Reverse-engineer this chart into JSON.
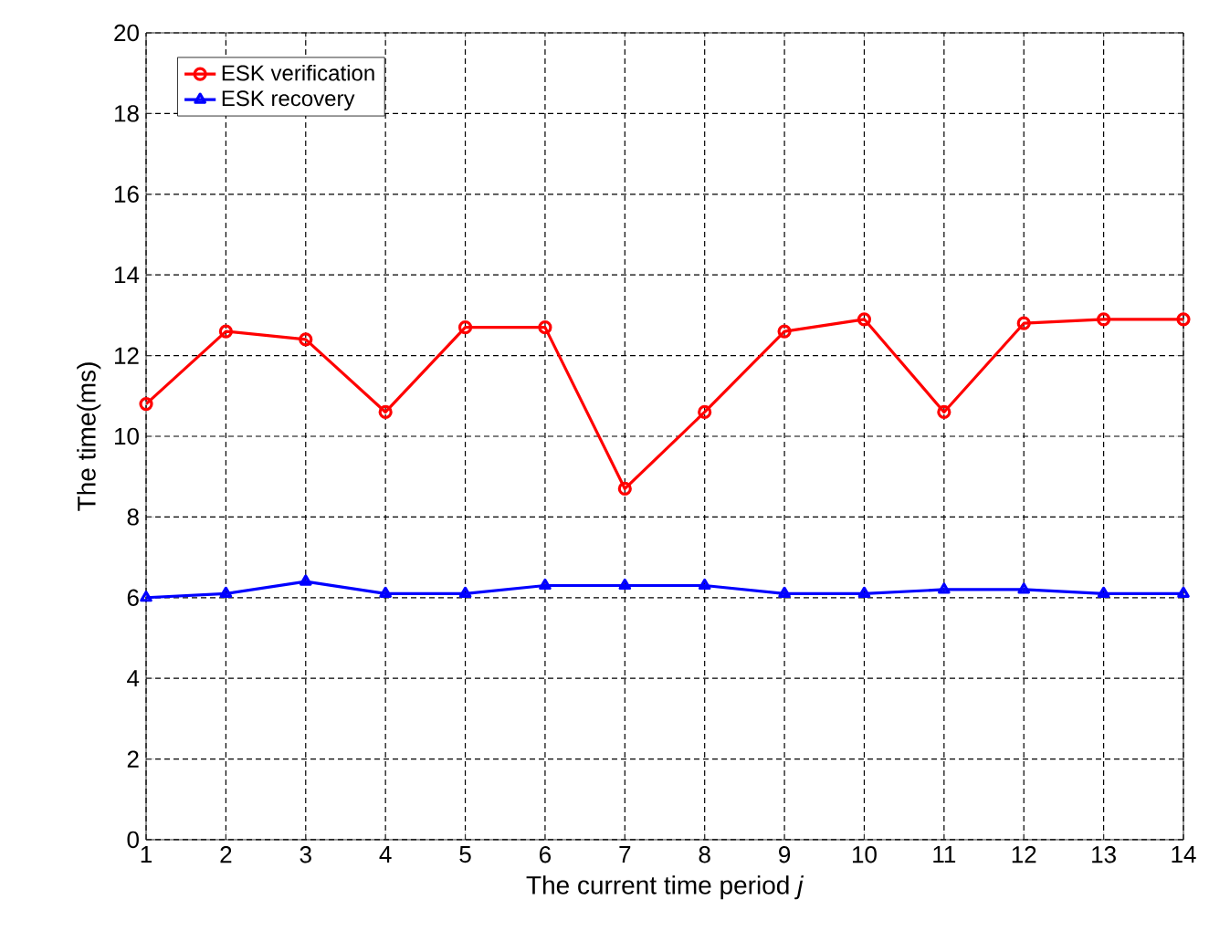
{
  "chart_data": {
    "type": "line",
    "xlabel": "The current time period *j*",
    "ylabel": "The time(ms)",
    "x": [
      1,
      2,
      3,
      4,
      5,
      6,
      7,
      8,
      9,
      10,
      11,
      12,
      13,
      14
    ],
    "series": [
      {
        "name": "ESK verification",
        "color": "#ff0000",
        "marker": "circle",
        "values": [
          10.8,
          12.6,
          12.4,
          10.6,
          12.7,
          12.7,
          8.7,
          10.6,
          12.6,
          12.9,
          10.6,
          12.8,
          12.9,
          12.9
        ]
      },
      {
        "name": "ESK recovery",
        "color": "#0000ff",
        "marker": "triangle",
        "values": [
          6.0,
          6.1,
          6.4,
          6.1,
          6.1,
          6.3,
          6.3,
          6.3,
          6.1,
          6.1,
          6.2,
          6.2,
          6.1,
          6.1
        ]
      }
    ],
    "xlim": [
      1,
      14
    ],
    "xticks": [
      1,
      2,
      3,
      4,
      5,
      6,
      7,
      8,
      9,
      10,
      11,
      12,
      13,
      14
    ],
    "ylim": [
      0,
      20
    ],
    "yticks": [
      0,
      2,
      4,
      6,
      8,
      10,
      12,
      14,
      16,
      18,
      20
    ],
    "grid": true,
    "legend": "top left",
    "line_style": "solid"
  }
}
